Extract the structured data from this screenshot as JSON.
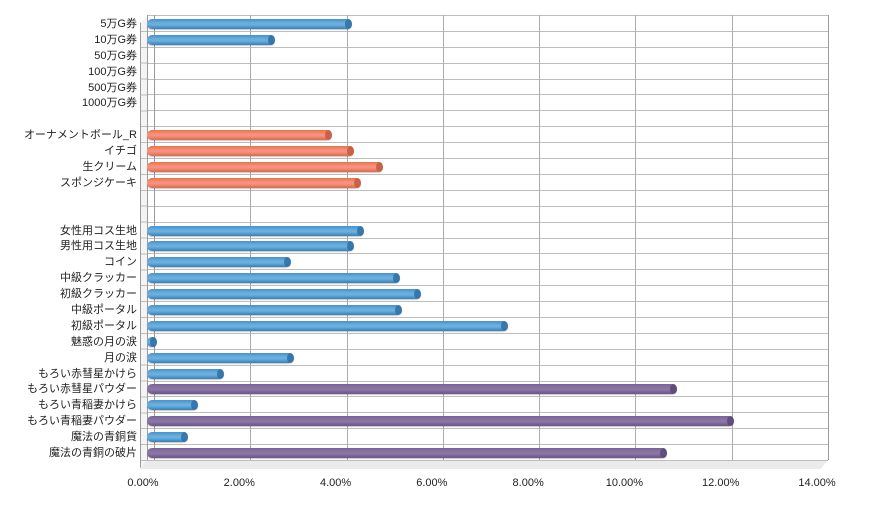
{
  "chart_data": {
    "type": "bar",
    "orientation": "horizontal",
    "title": "",
    "xlabel": "",
    "ylabel": "",
    "xlim": [
      0,
      14
    ],
    "x_tick_step_pct": 2,
    "x_ticks": [
      "0.00%",
      "2.00%",
      "4.00%",
      "6.00%",
      "8.00%",
      "10.00%",
      "12.00%",
      "14.00%"
    ],
    "grid": true,
    "legend": false,
    "value_unit": "percent",
    "categories": [
      "5万G券",
      "10万G券",
      "50万G券",
      "100万G券",
      "500万G券",
      "1000万G券",
      "オーナメントボール_R",
      "イチゴ",
      "生クリーム",
      "スポンジケーキ",
      "女性用コス生地",
      "男性用コス生地",
      "コイン",
      "中級クラッカー",
      "初級クラッカー",
      "中級ポータル",
      "初級ポータル",
      "魅惑の月の涙",
      "月の涙",
      "もろい赤彗星かけら",
      "もろい赤彗星パウダー",
      "もろい青稲妻かけら",
      "もろい青稲妻パウダー",
      "魔法の青銅貨",
      "魔法の青銅の破片"
    ],
    "values": [
      4.25,
      2.65,
      0,
      0,
      0,
      0,
      3.85,
      4.3,
      4.9,
      4.45,
      4.5,
      4.3,
      3.0,
      5.25,
      5.7,
      5.3,
      7.5,
      0.2,
      3.05,
      1.6,
      11.0,
      1.05,
      12.2,
      0.85,
      10.8
    ],
    "bar_colors": [
      "blue",
      "blue",
      "blue",
      "blue",
      "blue",
      "blue",
      "orange",
      "orange",
      "orange",
      "orange",
      "blue",
      "blue",
      "blue",
      "blue",
      "blue",
      "blue",
      "blue",
      "blue",
      "blue",
      "blue",
      "purple",
      "blue",
      "purple",
      "blue",
      "purple"
    ],
    "gap_rows": [
      {
        "after_index": 5,
        "rows": 1
      },
      {
        "after_index": 9,
        "rows": 2
      }
    ]
  },
  "palette": {
    "blue": {
      "top": "#4A90C8",
      "mid": "#68B0E2",
      "bottom": "#3C7FB2",
      "cap": "#2F6FA3"
    },
    "orange": {
      "top": "#E8714F",
      "mid": "#F7937B",
      "bottom": "#D96A4C",
      "cap": "#C25B41"
    },
    "purple": {
      "top": "#79629A",
      "mid": "#8A75A7",
      "bottom": "#6A5487",
      "cap": "#5B4877"
    },
    "grid_v_line": "#ABABAB",
    "grid_h_line": "#BDBDBD",
    "wall_border": "#9B9B9B",
    "wall_fill": "#F4F4F4",
    "floor_fill": "#EBEBEB",
    "axis_text": "#1F1F1F"
  }
}
